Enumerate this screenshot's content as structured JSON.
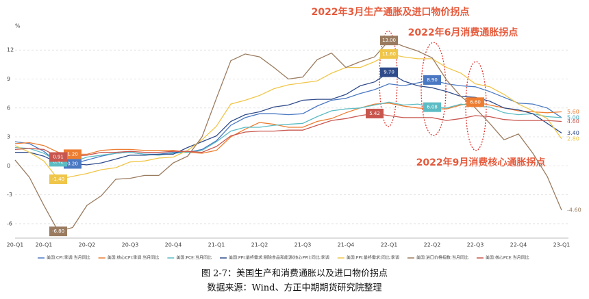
{
  "chart_data": {
    "type": "line",
    "y_label": "%",
    "caption": "图 2-7：美国生产和消费通胀以及进口物价拐点",
    "source": "数据来源：Wind、方正中期期货研究院整理",
    "annotations": [
      "2022年3月生产通胀及进口物价拐点",
      "2022年6月消费通胀拐点",
      "2022年9月消费核心通胀拐点"
    ],
    "categories": [
      "20-Q1",
      null,
      "20-Q1",
      null,
      null,
      "20-Q2",
      null,
      null,
      "20-Q3",
      null,
      null,
      "20-Q4",
      null,
      null,
      "21-Q1",
      null,
      null,
      "21-Q2",
      null,
      null,
      "21-Q3",
      null,
      null,
      "21-Q4",
      null,
      null,
      "22-Q1",
      null,
      null,
      "22-Q2",
      null,
      null,
      "22-Q3",
      null,
      null,
      "22-Q4",
      null,
      null,
      "23-Q1"
    ],
    "ylim": [
      -7.5,
      14.5
    ],
    "yticks": [
      -6,
      -3,
      0,
      3,
      6,
      9,
      12
    ],
    "grid": true,
    "series": [
      {
        "name": "美国:CPI:季调:当月同比",
        "color": "#4a78c2",
        "values": [
          2.5,
          2.3,
          1.5,
          0.3,
          0.2,
          0.6,
          1.0,
          1.3,
          1.4,
          1.2,
          1.2,
          1.4,
          1.4,
          1.7,
          2.6,
          4.2,
          5.0,
          5.4,
          5.4,
          5.3,
          5.4,
          6.2,
          6.8,
          7.0,
          7.5,
          7.9,
          8.5,
          8.3,
          8.6,
          8.9,
          8.5,
          8.3,
          8.2,
          7.7,
          7.1,
          6.5,
          6.4,
          6.0,
          5.0
        ],
        "value_labels": [
          null,
          null,
          null,
          null,
          "0.20",
          null,
          null,
          null,
          null,
          null,
          null,
          null,
          null,
          null,
          null,
          null,
          null,
          null,
          null,
          null,
          null,
          null,
          null,
          null,
          null,
          null,
          null,
          null,
          null,
          "8.90",
          null,
          null,
          null,
          null,
          null,
          null,
          null,
          null,
          "5.00"
        ]
      },
      {
        "name": "美国:核心CPI:季调:当月同比",
        "color": "#ed7d31",
        "values": [
          2.3,
          2.4,
          2.1,
          1.4,
          1.2,
          1.2,
          1.6,
          1.7,
          1.7,
          1.6,
          1.6,
          1.6,
          1.4,
          1.3,
          1.6,
          3.0,
          3.8,
          4.5,
          4.3,
          4.0,
          4.0,
          4.6,
          4.9,
          5.5,
          6.0,
          6.4,
          6.5,
          6.2,
          6.0,
          5.9,
          5.9,
          6.3,
          6.6,
          6.3,
          6.0,
          5.7,
          5.6,
          5.5,
          5.6
        ],
        "value_labels": [
          null,
          null,
          null,
          null,
          "1.20",
          null,
          null,
          null,
          null,
          null,
          null,
          null,
          null,
          null,
          null,
          null,
          null,
          null,
          null,
          null,
          null,
          null,
          null,
          null,
          null,
          null,
          null,
          null,
          null,
          null,
          null,
          null,
          "6.60",
          null,
          null,
          null,
          null,
          null,
          "5.60"
        ]
      },
      {
        "name": "美国:PCE:当月同比",
        "color": "#5bbcc4",
        "values": [
          1.9,
          1.8,
          1.3,
          0.42,
          0.4,
          0.9,
          1.1,
          1.3,
          1.4,
          1.2,
          1.1,
          1.3,
          1.4,
          1.6,
          2.5,
          3.6,
          4.0,
          4.0,
          4.2,
          4.3,
          4.4,
          5.1,
          5.7,
          5.9,
          6.0,
          6.3,
          6.6,
          6.3,
          6.4,
          6.08,
          6.0,
          6.4,
          6.2,
          6.1,
          5.5,
          5.3,
          5.4,
          5.1,
          5.0
        ],
        "value_labels": [
          null,
          null,
          null,
          "0.42",
          null,
          null,
          null,
          null,
          null,
          null,
          null,
          null,
          null,
          null,
          null,
          null,
          null,
          null,
          null,
          null,
          null,
          null,
          null,
          null,
          null,
          null,
          null,
          null,
          null,
          "6.08",
          null,
          null,
          null,
          null,
          null,
          null,
          null,
          null,
          "5.00"
        ]
      },
      {
        "name": "美国:PPI:最终需求:剔除食品和能源(核心PPI):同比:季调",
        "color": "#2f4b8a",
        "values": [
          1.4,
          1.4,
          1.0,
          0.3,
          0.2,
          0.1,
          0.3,
          0.7,
          1.1,
          1.1,
          1.2,
          1.2,
          1.9,
          2.5,
          3.1,
          4.6,
          5.3,
          5.6,
          6.1,
          6.3,
          6.8,
          6.9,
          6.9,
          7.4,
          8.3,
          8.7,
          9.7,
          8.8,
          8.3,
          8.1,
          7.7,
          7.2,
          7.1,
          6.7,
          6.0,
          5.8,
          5.4,
          4.4,
          3.4
        ],
        "value_labels": [
          null,
          null,
          null,
          null,
          null,
          null,
          null,
          null,
          null,
          null,
          null,
          null,
          null,
          null,
          null,
          null,
          null,
          null,
          null,
          null,
          null,
          null,
          null,
          null,
          null,
          null,
          "9.70",
          null,
          null,
          null,
          null,
          null,
          null,
          null,
          null,
          null,
          null,
          null,
          "3.40"
        ]
      },
      {
        "name": "美国:PPI:最终需求:同比:季调",
        "color": "#f0c64a",
        "values": [
          2.1,
          1.4,
          0.5,
          -1.4,
          -1.1,
          -0.8,
          -0.4,
          -0.2,
          0.4,
          0.5,
          0.8,
          0.9,
          1.6,
          2.7,
          4.1,
          6.4,
          6.8,
          7.3,
          8.0,
          8.4,
          8.6,
          8.8,
          9.6,
          10.2,
          10.2,
          10.8,
          11.6,
          11.3,
          11.1,
          11.1,
          10.2,
          9.6,
          8.5,
          8.2,
          7.4,
          6.4,
          5.7,
          4.9,
          2.8
        ],
        "value_labels": [
          null,
          null,
          null,
          "-1.40",
          null,
          null,
          null,
          null,
          null,
          null,
          null,
          null,
          null,
          null,
          null,
          null,
          null,
          null,
          null,
          null,
          null,
          null,
          null,
          null,
          null,
          null,
          "11.60",
          null,
          null,
          null,
          null,
          null,
          null,
          null,
          null,
          null,
          null,
          null,
          "2.80"
        ]
      },
      {
        "name": "美国:进口价格指数:当月同比",
        "color": "#9a7b5f",
        "values": [
          0.6,
          -1.2,
          -4.1,
          -6.8,
          -6.4,
          -4.1,
          -3.1,
          -1.4,
          -1.3,
          -1.0,
          -1.0,
          0.3,
          1.0,
          3.0,
          7.0,
          10.9,
          11.6,
          11.3,
          10.2,
          9.0,
          9.2,
          11.0,
          11.7,
          10.2,
          10.8,
          11.3,
          13.0,
          12.4,
          11.9,
          11.2,
          8.9,
          7.2,
          6.0,
          4.4,
          2.7,
          3.3,
          1.3,
          -1.1,
          -4.6
        ],
        "value_labels": [
          null,
          null,
          null,
          "-6.80",
          null,
          null,
          null,
          null,
          null,
          null,
          null,
          null,
          null,
          null,
          null,
          null,
          null,
          null,
          null,
          null,
          null,
          null,
          null,
          null,
          null,
          null,
          "13.00",
          null,
          null,
          null,
          null,
          null,
          null,
          null,
          null,
          null,
          null,
          null,
          "-4.60"
        ]
      },
      {
        "name": "美国:核心PCE:当月同比",
        "color": "#c8564e",
        "values": [
          1.7,
          1.8,
          1.7,
          0.91,
          1.0,
          1.1,
          1.4,
          1.4,
          1.5,
          1.4,
          1.4,
          1.5,
          1.5,
          1.4,
          2.0,
          3.1,
          3.5,
          3.6,
          3.6,
          3.7,
          3.7,
          4.2,
          4.7,
          4.9,
          5.2,
          5.42,
          5.2,
          5.0,
          5.0,
          5.0,
          4.7,
          4.9,
          5.2,
          5.1,
          4.8,
          4.7,
          4.7,
          4.7,
          4.6
        ],
        "value_labels": [
          null,
          null,
          null,
          "0.91",
          null,
          null,
          null,
          null,
          null,
          null,
          null,
          null,
          null,
          null,
          null,
          null,
          null,
          null,
          null,
          null,
          null,
          null,
          null,
          null,
          null,
          "5.42",
          null,
          null,
          null,
          null,
          null,
          null,
          null,
          null,
          null,
          null,
          null,
          null,
          "4.60"
        ]
      }
    ]
  }
}
